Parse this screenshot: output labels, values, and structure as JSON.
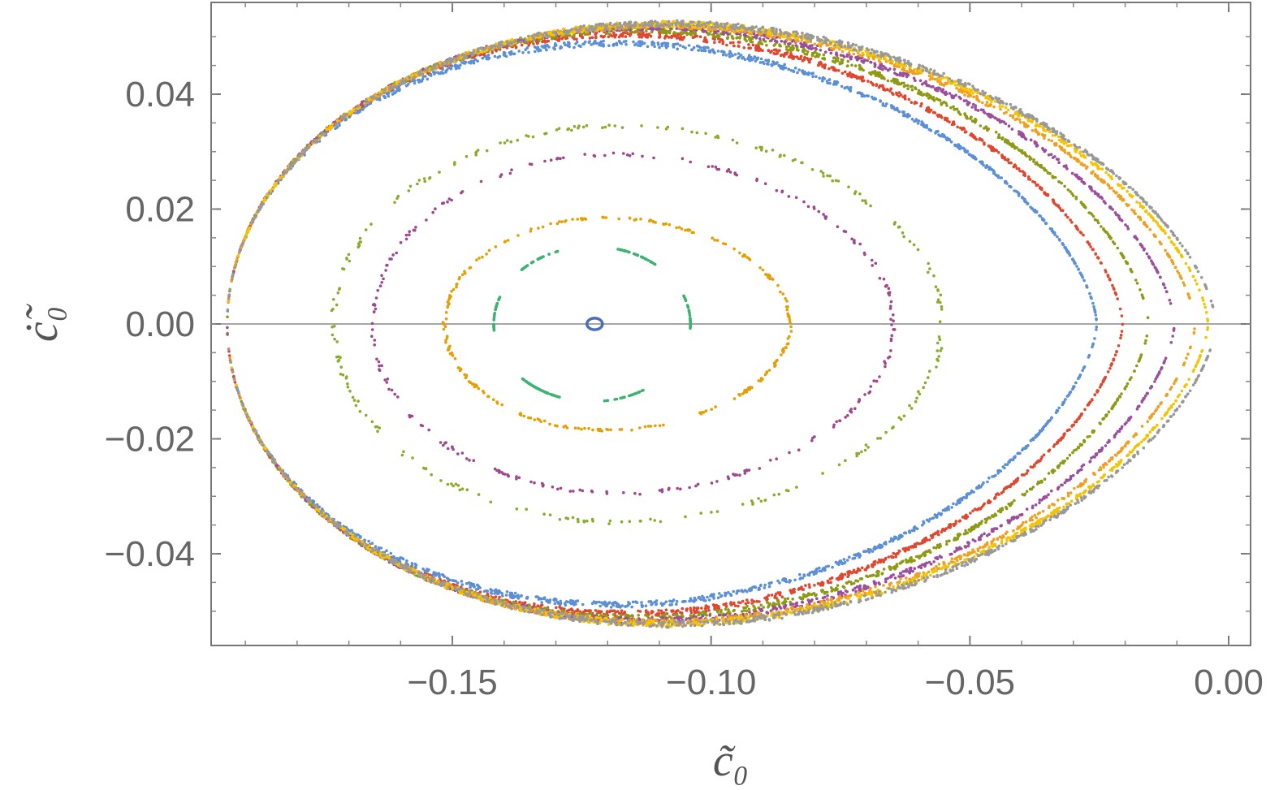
{
  "chart_data": {
    "type": "scatter",
    "title": "",
    "xlabel": "c̃₀",
    "ylabel": "ċ̃₀",
    "xlim": [
      -0.195,
      0.0
    ],
    "ylim": [
      -0.056,
      0.056
    ],
    "xticks": [
      -0.15,
      -0.1,
      -0.05,
      0.0
    ],
    "xtick_labels": [
      "−0.15",
      "−0.10",
      "−0.05",
      "0.00"
    ],
    "yticks": [
      -0.04,
      -0.02,
      0.0,
      0.02,
      0.04
    ],
    "ytick_labels": [
      "−0.04",
      "−0.02",
      "0.00",
      "0.02",
      "0.04"
    ],
    "zero_line": true,
    "grid": false,
    "series": [
      {
        "name": "orbit-blue-center",
        "color": "#4a6fb5",
        "kind": "center",
        "cx": -0.1225,
        "xr": 0.0015,
        "ymax": 0.001
      },
      {
        "name": "orbit-green-islands",
        "color": "#3cb371",
        "kind": "islands",
        "cx": -0.123,
        "xr": 0.019,
        "ymax": 0.0135
      },
      {
        "name": "orbit-orange-inner",
        "color": "#e69f00",
        "kind": "inner",
        "cx": -0.12,
        "xr": 0.0315,
        "ymax": 0.0185
      },
      {
        "name": "orbit-purple-mid",
        "color": "#a0468c",
        "kind": "inner",
        "cx": -0.118,
        "xr": 0.0475,
        "ymax": 0.0295
      },
      {
        "name": "orbit-olive-mid",
        "color": "#8aac2a",
        "kind": "inner",
        "cx": -0.1175,
        "xr": 0.0555,
        "ymax": 0.0345
      },
      {
        "name": "orbit-blue-outer",
        "color": "#5b8fd6",
        "kind": "outer",
        "x_right": -0.0255,
        "ymax": 0.047
      },
      {
        "name": "orbit-red-outer",
        "color": "#e0472f",
        "kind": "outer",
        "x_right": -0.0205,
        "ymax": 0.0485
      },
      {
        "name": "orbit-olive-outer",
        "color": "#8e9a14",
        "kind": "outer",
        "x_right": -0.0155,
        "ymax": 0.0492
      },
      {
        "name": "orbit-purple-outer",
        "color": "#9b4f9b",
        "kind": "outer",
        "x_right": -0.0105,
        "ymax": 0.0497
      },
      {
        "name": "orbit-orange-outer",
        "color": "#f0a020",
        "kind": "outer",
        "x_right": -0.0065,
        "ymax": 0.05
      },
      {
        "name": "orbit-gold-separatrix",
        "color": "#f5c400",
        "kind": "outer",
        "x_right": -0.004,
        "ymax": 0.0502
      },
      {
        "name": "orbit-gray-separatrix",
        "color": "#999999",
        "kind": "outer",
        "x_right": -0.0025,
        "ymax": 0.0503
      }
    ]
  }
}
